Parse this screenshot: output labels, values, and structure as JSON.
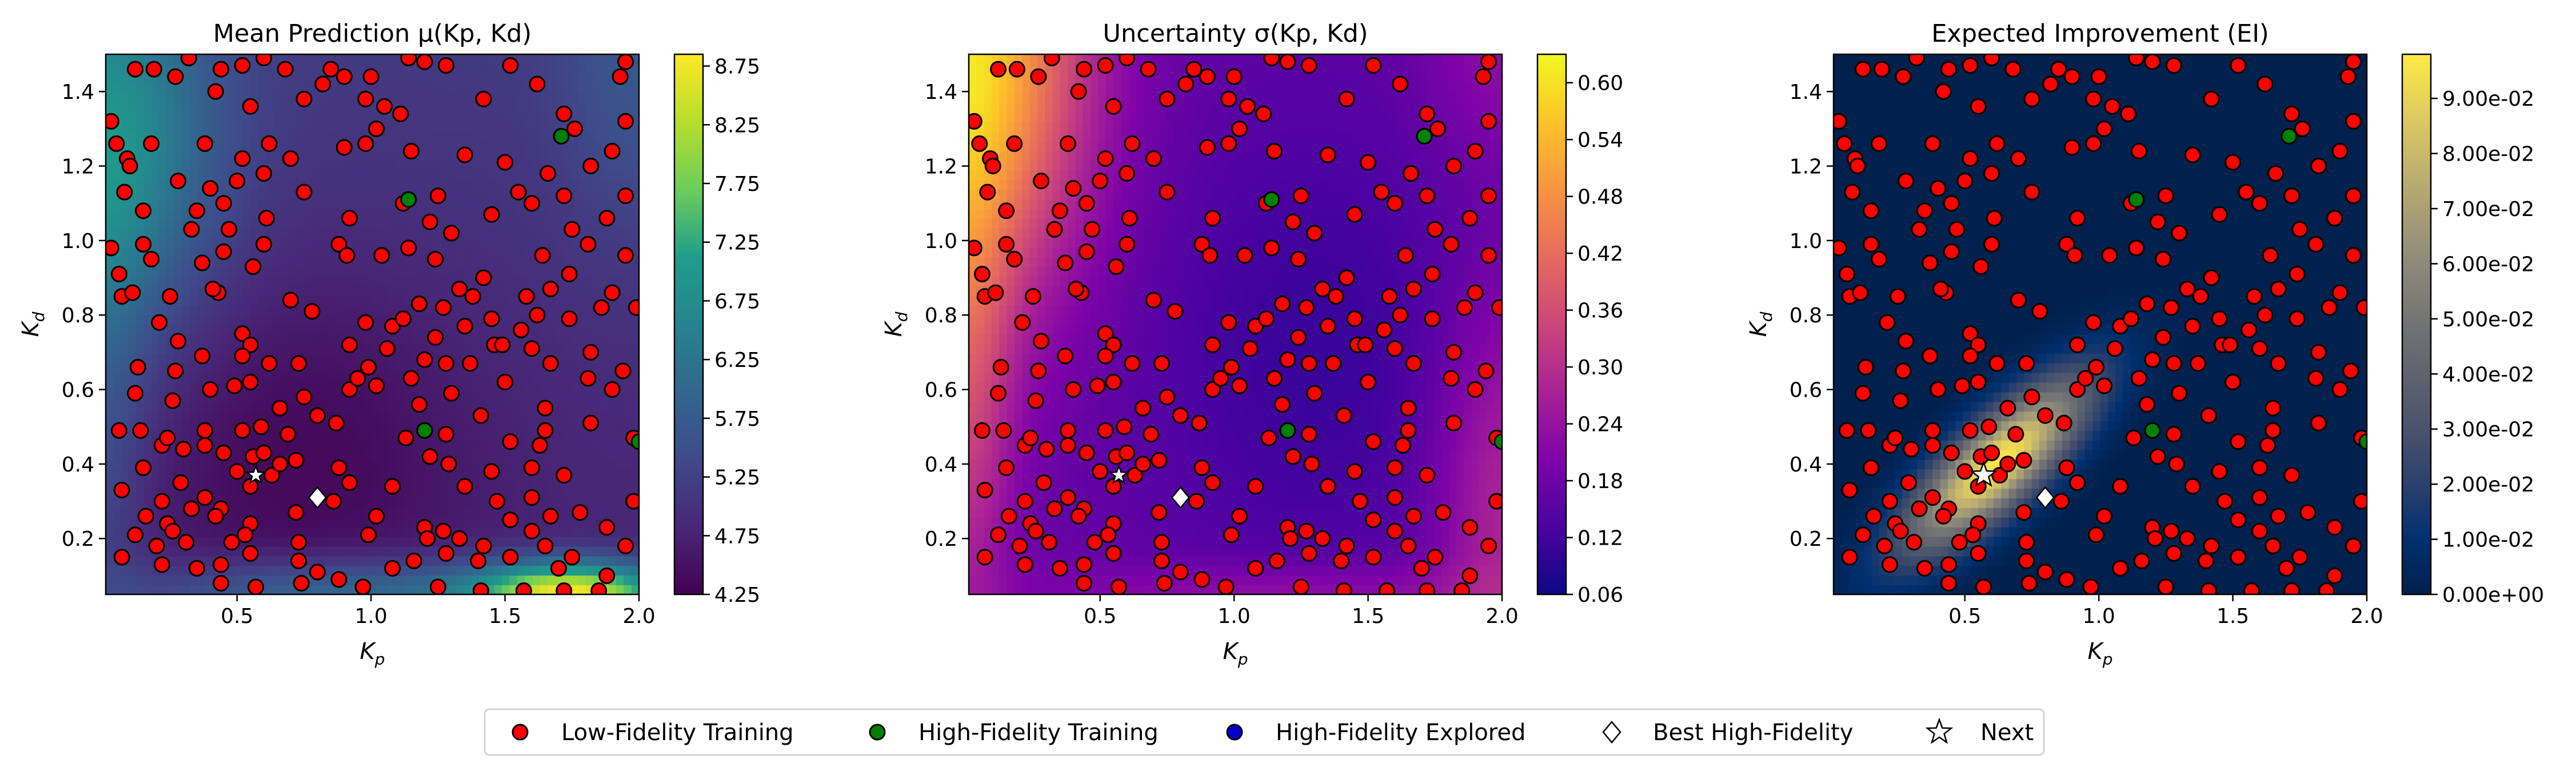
{
  "chart_data": [
    {
      "type": "heatmap",
      "title": "Mean Prediction μ(Kp, Kd)",
      "xlabel": "Kp",
      "ylabel": "Kd",
      "xlim": [
        0.01,
        2.0
      ],
      "ylim": [
        0.05,
        1.5
      ],
      "xticks": [
        "0.5",
        "1.0",
        "1.5",
        "2.0"
      ],
      "yticks": [
        "0.2",
        "0.4",
        "0.6",
        "0.8",
        "1.0",
        "1.2",
        "1.4"
      ],
      "colormap": "viridis",
      "colorbar_range": [
        4.25,
        8.85
      ],
      "colorbar_ticks": [
        "4.25",
        "4.75",
        "5.25",
        "5.75",
        "6.25",
        "6.75",
        "7.25",
        "7.75",
        "8.25",
        "8.75"
      ]
    },
    {
      "type": "heatmap",
      "title": "Uncertainty σ(Kp, Kd)",
      "xlabel": "Kp",
      "ylabel": "Kd",
      "xlim": [
        0.01,
        2.0
      ],
      "ylim": [
        0.05,
        1.5
      ],
      "xticks": [
        "0.5",
        "1.0",
        "1.5",
        "2.0"
      ],
      "yticks": [
        "0.2",
        "0.4",
        "0.6",
        "0.8",
        "1.0",
        "1.2",
        "1.4"
      ],
      "colormap": "plasma",
      "colorbar_range": [
        0.06,
        0.63
      ],
      "colorbar_ticks": [
        "0.06",
        "0.12",
        "0.18",
        "0.24",
        "0.30",
        "0.36",
        "0.42",
        "0.48",
        "0.54",
        "0.60"
      ]
    },
    {
      "type": "heatmap",
      "title": "Expected Improvement (EI)",
      "xlabel": "Kp",
      "ylabel": "Kd",
      "xlim": [
        0.01,
        2.0
      ],
      "ylim": [
        0.05,
        1.5
      ],
      "xticks": [
        "0.5",
        "1.0",
        "1.5",
        "2.0"
      ],
      "yticks": [
        "0.2",
        "0.4",
        "0.6",
        "0.8",
        "1.0",
        "1.2",
        "1.4"
      ],
      "colormap": "cividis",
      "colorbar_range": [
        0.0,
        0.098
      ],
      "colorbar_ticks": [
        "0.00e+00",
        "1.00e-02",
        "2.00e-02",
        "3.00e-02",
        "4.00e-02",
        "5.00e-02",
        "6.00e-02",
        "7.00e-02",
        "8.00e-02",
        "9.00e-02"
      ]
    }
  ],
  "points": {
    "low_fidelity": [
      [
        0.03,
        1.32
      ],
      [
        0.05,
        1.26
      ],
      [
        0.09,
        1.22
      ],
      [
        0.12,
        1.46
      ],
      [
        0.19,
        1.46
      ],
      [
        0.27,
        1.44
      ],
      [
        0.32,
        1.49
      ],
      [
        0.44,
        1.46
      ],
      [
        0.52,
        1.47
      ],
      [
        0.6,
        1.49
      ],
      [
        0.68,
        1.46
      ],
      [
        0.82,
        1.42
      ],
      [
        0.85,
        1.46
      ],
      [
        0.9,
        1.44
      ],
      [
        1.0,
        1.44
      ],
      [
        1.14,
        1.49
      ],
      [
        1.2,
        1.48
      ],
      [
        1.28,
        1.47
      ],
      [
        1.52,
        1.47
      ],
      [
        1.95,
        1.48
      ],
      [
        0.42,
        1.4
      ],
      [
        0.55,
        1.36
      ],
      [
        0.75,
        1.38
      ],
      [
        0.98,
        1.38
      ],
      [
        1.05,
        1.36
      ],
      [
        1.11,
        1.34
      ],
      [
        1.42,
        1.38
      ],
      [
        1.62,
        1.42
      ],
      [
        1.72,
        1.34
      ],
      [
        1.76,
        1.3
      ],
      [
        1.95,
        1.32
      ],
      [
        1.93,
        1.44
      ],
      [
        0.18,
        1.26
      ],
      [
        0.28,
        1.16
      ],
      [
        0.38,
        1.26
      ],
      [
        0.52,
        1.22
      ],
      [
        0.6,
        1.18
      ],
      [
        0.7,
        1.22
      ],
      [
        0.62,
        1.26
      ],
      [
        0.9,
        1.25
      ],
      [
        0.98,
        1.26
      ],
      [
        1.02,
        1.3
      ],
      [
        1.15,
        1.24
      ],
      [
        1.35,
        1.23
      ],
      [
        1.5,
        1.21
      ],
      [
        1.66,
        1.18
      ],
      [
        1.82,
        1.2
      ],
      [
        1.9,
        1.24
      ],
      [
        0.1,
        1.2
      ],
      [
        0.08,
        1.13
      ],
      [
        0.15,
        1.08
      ],
      [
        0.35,
        1.08
      ],
      [
        0.45,
        1.1
      ],
      [
        0.4,
        1.14
      ],
      [
        0.5,
        1.16
      ],
      [
        0.75,
        1.13
      ],
      [
        1.12,
        1.1
      ],
      [
        1.25,
        1.12
      ],
      [
        1.55,
        1.13
      ],
      [
        1.6,
        1.1
      ],
      [
        1.72,
        1.12
      ],
      [
        1.95,
        1.12
      ],
      [
        0.03,
        0.98
      ],
      [
        0.15,
        0.99
      ],
      [
        0.33,
        1.03
      ],
      [
        0.47,
        1.03
      ],
      [
        0.61,
        1.06
      ],
      [
        0.6,
        0.99
      ],
      [
        0.92,
        1.06
      ],
      [
        1.22,
        1.05
      ],
      [
        1.3,
        1.02
      ],
      [
        1.45,
        1.07
      ],
      [
        1.75,
        1.03
      ],
      [
        1.88,
        1.06
      ],
      [
        0.06,
        0.91
      ],
      [
        0.18,
        0.95
      ],
      [
        0.37,
        0.94
      ],
      [
        0.43,
        0.86
      ],
      [
        0.45,
        0.97
      ],
      [
        0.56,
        0.93
      ],
      [
        0.88,
        0.99
      ],
      [
        0.91,
        0.96
      ],
      [
        1.04,
        0.96
      ],
      [
        1.14,
        0.98
      ],
      [
        1.24,
        0.95
      ],
      [
        1.42,
        0.9
      ],
      [
        1.64,
        0.96
      ],
      [
        1.74,
        0.91
      ],
      [
        1.81,
        0.99
      ],
      [
        1.95,
        0.96
      ],
      [
        0.07,
        0.85
      ],
      [
        0.11,
        0.86
      ],
      [
        0.21,
        0.78
      ],
      [
        0.25,
        0.85
      ],
      [
        0.41,
        0.87
      ],
      [
        0.7,
        0.84
      ],
      [
        0.78,
        0.81
      ],
      [
        1.18,
        0.83
      ],
      [
        1.27,
        0.82
      ],
      [
        1.33,
        0.87
      ],
      [
        1.38,
        0.85
      ],
      [
        1.45,
        0.79
      ],
      [
        1.58,
        0.85
      ],
      [
        1.62,
        0.8
      ],
      [
        1.67,
        0.87
      ],
      [
        1.86,
        0.82
      ],
      [
        1.9,
        0.86
      ],
      [
        1.99,
        0.82
      ],
      [
        0.28,
        0.73
      ],
      [
        0.52,
        0.75
      ],
      [
        0.55,
        0.72
      ],
      [
        0.98,
        0.78
      ],
      [
        1.08,
        0.77
      ],
      [
        1.12,
        0.79
      ],
      [
        1.24,
        0.74
      ],
      [
        1.35,
        0.77
      ],
      [
        1.46,
        0.72
      ],
      [
        1.56,
        0.76
      ],
      [
        1.6,
        0.71
      ],
      [
        1.74,
        0.79
      ],
      [
        1.82,
        0.7
      ],
      [
        0.13,
        0.66
      ],
      [
        0.27,
        0.65
      ],
      [
        0.37,
        0.69
      ],
      [
        0.52,
        0.69
      ],
      [
        0.62,
        0.67
      ],
      [
        0.73,
        0.67
      ],
      [
        0.92,
        0.72
      ],
      [
        0.99,
        0.66
      ],
      [
        1.06,
        0.71
      ],
      [
        1.15,
        0.63
      ],
      [
        1.2,
        0.68
      ],
      [
        1.28,
        0.67
      ],
      [
        1.37,
        0.67
      ],
      [
        1.49,
        0.72
      ],
      [
        1.67,
        0.67
      ],
      [
        1.81,
        0.63
      ],
      [
        1.94,
        0.65
      ],
      [
        0.12,
        0.59
      ],
      [
        0.26,
        0.57
      ],
      [
        0.4,
        0.6
      ],
      [
        0.49,
        0.61
      ],
      [
        0.55,
        0.62
      ],
      [
        0.66,
        0.55
      ],
      [
        0.75,
        0.58
      ],
      [
        0.92,
        0.6
      ],
      [
        0.95,
        0.63
      ],
      [
        1.02,
        0.61
      ],
      [
        1.18,
        0.56
      ],
      [
        1.3,
        0.59
      ],
      [
        1.5,
        0.62
      ],
      [
        1.65,
        0.55
      ],
      [
        1.9,
        0.6
      ],
      [
        0.06,
        0.49
      ],
      [
        0.14,
        0.49
      ],
      [
        0.22,
        0.45
      ],
      [
        0.24,
        0.47
      ],
      [
        0.3,
        0.44
      ],
      [
        0.38,
        0.45
      ],
      [
        0.38,
        0.49
      ],
      [
        0.45,
        0.43
      ],
      [
        0.52,
        0.49
      ],
      [
        0.59,
        0.5
      ],
      [
        0.69,
        0.48
      ],
      [
        0.8,
        0.53
      ],
      [
        0.87,
        0.51
      ],
      [
        1.13,
        0.47
      ],
      [
        1.28,
        0.48
      ],
      [
        1.41,
        0.53
      ],
      [
        1.52,
        0.46
      ],
      [
        1.65,
        0.49
      ],
      [
        1.63,
        0.45
      ],
      [
        1.82,
        0.51
      ],
      [
        1.98,
        0.47
      ],
      [
        0.15,
        0.39
      ],
      [
        0.29,
        0.35
      ],
      [
        0.5,
        0.38
      ],
      [
        0.56,
        0.42
      ],
      [
        0.6,
        0.43
      ],
      [
        0.63,
        0.37
      ],
      [
        0.66,
        0.4
      ],
      [
        0.72,
        0.41
      ],
      [
        0.88,
        0.39
      ],
      [
        1.22,
        0.42
      ],
      [
        1.29,
        0.4
      ],
      [
        1.45,
        0.38
      ],
      [
        1.6,
        0.39
      ],
      [
        1.72,
        0.37
      ],
      [
        0.07,
        0.33
      ],
      [
        0.22,
        0.3
      ],
      [
        0.33,
        0.28
      ],
      [
        0.38,
        0.31
      ],
      [
        0.44,
        0.28
      ],
      [
        0.55,
        0.34
      ],
      [
        0.86,
        0.3
      ],
      [
        0.92,
        0.35
      ],
      [
        1.08,
        0.34
      ],
      [
        1.35,
        0.34
      ],
      [
        1.47,
        0.3
      ],
      [
        1.6,
        0.31
      ],
      [
        1.78,
        0.27
      ],
      [
        1.98,
        0.3
      ],
      [
        0.16,
        0.26
      ],
      [
        0.24,
        0.24
      ],
      [
        0.33,
        0.28
      ],
      [
        0.42,
        0.26
      ],
      [
        0.55,
        0.24
      ],
      [
        0.72,
        0.27
      ],
      [
        1.02,
        0.26
      ],
      [
        1.2,
        0.23
      ],
      [
        1.27,
        0.22
      ],
      [
        1.52,
        0.25
      ],
      [
        1.67,
        0.26
      ],
      [
        1.88,
        0.23
      ],
      [
        0.12,
        0.21
      ],
      [
        0.2,
        0.18
      ],
      [
        0.26,
        0.22
      ],
      [
        0.31,
        0.19
      ],
      [
        0.48,
        0.19
      ],
      [
        0.53,
        0.21
      ],
      [
        0.73,
        0.19
      ],
      [
        0.99,
        0.21
      ],
      [
        1.21,
        0.2
      ],
      [
        1.33,
        0.2
      ],
      [
        1.42,
        0.18
      ],
      [
        1.6,
        0.22
      ],
      [
        1.65,
        0.18
      ],
      [
        1.75,
        0.15
      ],
      [
        1.95,
        0.18
      ],
      [
        0.07,
        0.15
      ],
      [
        0.22,
        0.13
      ],
      [
        0.35,
        0.12
      ],
      [
        0.44,
        0.13
      ],
      [
        0.55,
        0.16
      ],
      [
        0.73,
        0.14
      ],
      [
        0.8,
        0.11
      ],
      [
        0.88,
        0.09
      ],
      [
        1.08,
        0.12
      ],
      [
        1.16,
        0.14
      ],
      [
        1.28,
        0.16
      ],
      [
        1.4,
        0.14
      ],
      [
        1.52,
        0.15
      ],
      [
        1.7,
        0.12
      ],
      [
        1.88,
        0.1
      ],
      [
        0.44,
        0.08
      ],
      [
        0.57,
        0.07
      ],
      [
        0.74,
        0.08
      ],
      [
        0.97,
        0.07
      ],
      [
        1.25,
        0.07
      ],
      [
        1.41,
        0.06
      ],
      [
        1.57,
        0.06
      ],
      [
        1.72,
        0.06
      ],
      [
        1.85,
        0.06
      ]
    ],
    "high_fidelity": [
      [
        1.14,
        1.11
      ],
      [
        1.71,
        1.28
      ],
      [
        1.2,
        0.49
      ],
      [
        2.0,
        0.46
      ]
    ],
    "best_high_fidelity": [
      0.8,
      0.31
    ],
    "next": [
      0.57,
      0.37
    ]
  },
  "legend": {
    "items": [
      {
        "label": "Low-Fidelity Training",
        "marker": "circle",
        "color": "#ff0000"
      },
      {
        "label": "High-Fidelity Training",
        "marker": "circle",
        "color": "#008000"
      },
      {
        "label": "High-Fidelity Explored",
        "marker": "circle",
        "color": "#0000cc"
      },
      {
        "label": "Best High-Fidelity",
        "marker": "diamond",
        "color": "#ffffff"
      },
      {
        "label": "Next",
        "marker": "star",
        "color": "#ffffff"
      }
    ]
  }
}
